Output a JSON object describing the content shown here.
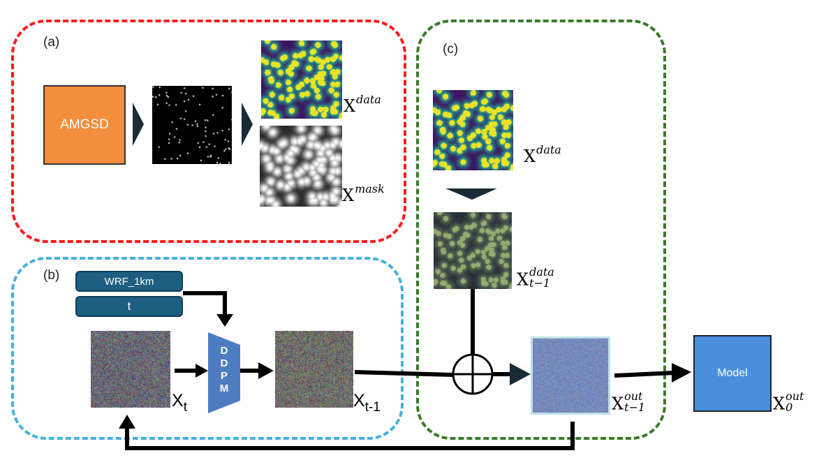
{
  "panels": {
    "a": "(a)",
    "b": "(b)",
    "c": "(c)"
  },
  "boxes": {
    "amgsd": "AMGSD",
    "model": "Model",
    "wrf": "WRF_1km",
    "t": "t"
  },
  "ddpm_letters": [
    "D",
    "D",
    "P",
    "M"
  ],
  "labels": {
    "x_data_a": {
      "base": "X",
      "sup": "data"
    },
    "x_mask": {
      "base": "X",
      "sup": "mask"
    },
    "x_data_c": {
      "base": "X",
      "sup": "data"
    },
    "x_data_t1": {
      "base": "X",
      "sup": "data",
      "sub": "t−1"
    },
    "x_t": {
      "base": "X",
      "sub": "t"
    },
    "x_t1": {
      "base": "X",
      "sub": "t-1"
    },
    "x_out_t1": {
      "base": "X",
      "sup": "out",
      "sub": "t−1"
    },
    "x_out_0": {
      "base": "X",
      "sup": "out",
      "sub": "0"
    }
  },
  "colors": {
    "frame_a": "#ff1a1a",
    "frame_b": "#47b0dc",
    "frame_c": "#3a7a28",
    "amgsd": "#f28e3c",
    "model": "#4a8ede",
    "pill": "#1e5f81",
    "ddpm": "#4d7cc0",
    "viridis_bg": "#3b1460",
    "viridis_mid": "#2a8a8c",
    "viridis_hi": "#f2e81c"
  }
}
